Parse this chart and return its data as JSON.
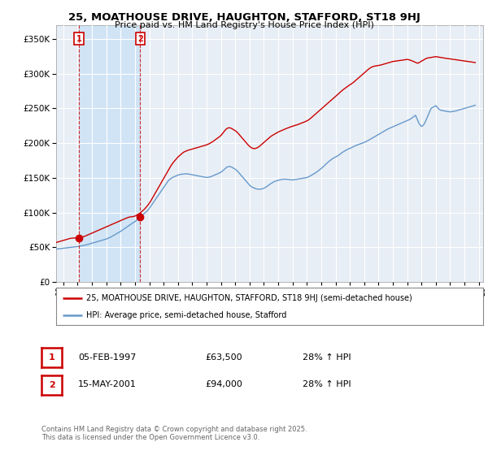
{
  "title": "25, MOATHOUSE DRIVE, HAUGHTON, STAFFORD, ST18 9HJ",
  "subtitle": "Price paid vs. HM Land Registry's House Price Index (HPI)",
  "background_color": "#ffffff",
  "plot_bg_color": "#e8eef5",
  "grid_color": "#ffffff",
  "red_color": "#cc0000",
  "blue_color": "#6699cc",
  "shade_color": "#d0e4f5",
  "legend_label_red": "25, MOATHOUSE DRIVE, HAUGHTON, STAFFORD, ST18 9HJ (semi-detached house)",
  "legend_label_blue": "HPI: Average price, semi-detached house, Stafford",
  "purchase1_date": "05-FEB-1997",
  "purchase1_price": "£63,500",
  "purchase1_hpi": "28% ↑ HPI",
  "purchase2_date": "15-MAY-2001",
  "purchase2_price": "£94,000",
  "purchase2_hpi": "28% ↑ HPI",
  "footer": "Contains HM Land Registry data © Crown copyright and database right 2025.\nThis data is licensed under the Open Government Licence v3.0.",
  "ylim": [
    0,
    370000
  ],
  "yticks": [
    0,
    50000,
    100000,
    150000,
    200000,
    250000,
    300000,
    350000
  ],
  "purchase1_x": 1997.09,
  "purchase1_y": 63500,
  "purchase2_x": 2001.37,
  "purchase2_y": 94000,
  "xmin": 1995.5,
  "xmax": 2025.3,
  "hpi_data_x": [
    1995.5,
    1995.583,
    1995.667,
    1995.75,
    1995.833,
    1995.917,
    1996.0,
    1996.083,
    1996.167,
    1996.25,
    1996.333,
    1996.417,
    1996.5,
    1996.583,
    1996.667,
    1996.75,
    1996.833,
    1996.917,
    1997.0,
    1997.083,
    1997.167,
    1997.25,
    1997.333,
    1997.417,
    1997.5,
    1997.583,
    1997.667,
    1997.75,
    1997.833,
    1997.917,
    1998.0,
    1998.083,
    1998.167,
    1998.25,
    1998.333,
    1998.417,
    1998.5,
    1998.583,
    1998.667,
    1998.75,
    1998.833,
    1998.917,
    1999.0,
    1999.083,
    1999.167,
    1999.25,
    1999.333,
    1999.417,
    1999.5,
    1999.583,
    1999.667,
    1999.75,
    1999.833,
    1999.917,
    2000.0,
    2000.083,
    2000.167,
    2000.25,
    2000.333,
    2000.417,
    2000.5,
    2000.583,
    2000.667,
    2000.75,
    2000.833,
    2000.917,
    2001.0,
    2001.083,
    2001.167,
    2001.25,
    2001.333,
    2001.417,
    2001.5,
    2001.583,
    2001.667,
    2001.75,
    2001.833,
    2001.917,
    2002.0,
    2002.083,
    2002.167,
    2002.25,
    2002.333,
    2002.417,
    2002.5,
    2002.583,
    2002.667,
    2002.75,
    2002.833,
    2002.917,
    2003.0,
    2003.083,
    2003.167,
    2003.25,
    2003.333,
    2003.417,
    2003.5,
    2003.583,
    2003.667,
    2003.75,
    2003.833,
    2003.917,
    2004.0,
    2004.083,
    2004.167,
    2004.25,
    2004.333,
    2004.417,
    2004.5,
    2004.583,
    2004.667,
    2004.75,
    2004.833,
    2004.917,
    2005.0,
    2005.083,
    2005.167,
    2005.25,
    2005.333,
    2005.417,
    2005.5,
    2005.583,
    2005.667,
    2005.75,
    2005.833,
    2005.917,
    2006.0,
    2006.083,
    2006.167,
    2006.25,
    2006.333,
    2006.417,
    2006.5,
    2006.583,
    2006.667,
    2006.75,
    2006.833,
    2006.917,
    2007.0,
    2007.083,
    2007.167,
    2007.25,
    2007.333,
    2007.417,
    2007.5,
    2007.583,
    2007.667,
    2007.75,
    2007.833,
    2007.917,
    2008.0,
    2008.083,
    2008.167,
    2008.25,
    2008.333,
    2008.417,
    2008.5,
    2008.583,
    2008.667,
    2008.75,
    2008.833,
    2008.917,
    2009.0,
    2009.083,
    2009.167,
    2009.25,
    2009.333,
    2009.417,
    2009.5,
    2009.583,
    2009.667,
    2009.75,
    2009.833,
    2009.917,
    2010.0,
    2010.083,
    2010.167,
    2010.25,
    2010.333,
    2010.417,
    2010.5,
    2010.583,
    2010.667,
    2010.75,
    2010.833,
    2010.917,
    2011.0,
    2011.083,
    2011.167,
    2011.25,
    2011.333,
    2011.417,
    2011.5,
    2011.583,
    2011.667,
    2011.75,
    2011.833,
    2011.917,
    2012.0,
    2012.083,
    2012.167,
    2012.25,
    2012.333,
    2012.417,
    2012.5,
    2012.583,
    2012.667,
    2012.75,
    2012.833,
    2012.917,
    2013.0,
    2013.083,
    2013.167,
    2013.25,
    2013.333,
    2013.417,
    2013.5,
    2013.583,
    2013.667,
    2013.75,
    2013.833,
    2013.917,
    2014.0,
    2014.083,
    2014.167,
    2014.25,
    2014.333,
    2014.417,
    2014.5,
    2014.583,
    2014.667,
    2014.75,
    2014.833,
    2014.917,
    2015.0,
    2015.083,
    2015.167,
    2015.25,
    2015.333,
    2015.417,
    2015.5,
    2015.583,
    2015.667,
    2015.75,
    2015.833,
    2015.917,
    2016.0,
    2016.083,
    2016.167,
    2016.25,
    2016.333,
    2016.417,
    2016.5,
    2016.583,
    2016.667,
    2016.75,
    2016.833,
    2016.917,
    2017.0,
    2017.083,
    2017.167,
    2017.25,
    2017.333,
    2017.417,
    2017.5,
    2017.583,
    2017.667,
    2017.75,
    2017.833,
    2017.917,
    2018.0,
    2018.083,
    2018.167,
    2018.25,
    2018.333,
    2018.417,
    2018.5,
    2018.583,
    2018.667,
    2018.75,
    2018.833,
    2018.917,
    2019.0,
    2019.083,
    2019.167,
    2019.25,
    2019.333,
    2019.417,
    2019.5,
    2019.583,
    2019.667,
    2019.75,
    2019.833,
    2019.917,
    2020.0,
    2020.083,
    2020.167,
    2020.25,
    2020.333,
    2020.417,
    2020.5,
    2020.583,
    2020.667,
    2020.75,
    2020.833,
    2020.917,
    2021.0,
    2021.083,
    2021.167,
    2021.25,
    2021.333,
    2021.417,
    2021.5,
    2021.583,
    2021.667,
    2021.75,
    2021.833,
    2021.917,
    2022.0,
    2022.083,
    2022.167,
    2022.25,
    2022.333,
    2022.417,
    2022.5,
    2022.583,
    2022.667,
    2022.75,
    2022.833,
    2022.917,
    2023.0,
    2023.083,
    2023.167,
    2023.25,
    2023.333,
    2023.417,
    2023.5,
    2023.583,
    2023.667,
    2023.75,
    2023.833,
    2023.917,
    2024.0,
    2024.083,
    2024.167,
    2024.25,
    2024.333,
    2024.417,
    2024.5,
    2024.583,
    2024.667,
    2024.75
  ],
  "hpi_data_y": [
    47500,
    47700,
    47900,
    48100,
    48300,
    48500,
    48700,
    49000,
    49200,
    49400,
    49600,
    49800,
    50000,
    50200,
    50400,
    50600,
    50800,
    51000,
    51200,
    51500,
    51800,
    52100,
    52400,
    52700,
    53000,
    53500,
    54000,
    54500,
    55000,
    55500,
    56000,
    56500,
    57000,
    57500,
    58000,
    58500,
    59000,
    59500,
    60000,
    60500,
    61000,
    61500,
    62000,
    62800,
    63500,
    64200,
    65000,
    66000,
    67000,
    68000,
    69000,
    70000,
    71000,
    72000,
    73000,
    74200,
    75400,
    76600,
    77800,
    79000,
    80200,
    81400,
    82600,
    83800,
    85000,
    86000,
    87000,
    88500,
    90000,
    91500,
    93000,
    94500,
    96000,
    97500,
    99000,
    100500,
    102000,
    104000,
    106000,
    108500,
    111000,
    113500,
    116000,
    118500,
    121000,
    123500,
    126000,
    128500,
    131000,
    133500,
    136000,
    138500,
    141000,
    143500,
    146000,
    147500,
    149000,
    150000,
    151000,
    151800,
    152600,
    153200,
    154000,
    154500,
    155000,
    155200,
    155500,
    155700,
    155800,
    156000,
    155800,
    155500,
    155200,
    154800,
    154500,
    154200,
    153800,
    153500,
    153200,
    152800,
    152500,
    152200,
    151800,
    151500,
    151200,
    150900,
    150600,
    150800,
    151000,
    151500,
    152000,
    152800,
    153500,
    154200,
    155000,
    155800,
    156500,
    157200,
    158000,
    159500,
    161000,
    162500,
    164000,
    165500,
    166000,
    166500,
    166200,
    165500,
    164500,
    163500,
    162500,
    161000,
    159500,
    157500,
    155500,
    153500,
    151500,
    149500,
    147500,
    145500,
    143500,
    141500,
    139500,
    138000,
    136800,
    136000,
    135200,
    134500,
    134000,
    133800,
    133600,
    133800,
    134000,
    134500,
    135000,
    136000,
    137000,
    138200,
    139500,
    140800,
    142000,
    143000,
    144000,
    144800,
    145500,
    146000,
    146500,
    147000,
    147500,
    147800,
    148000,
    148200,
    148200,
    148000,
    147800,
    147600,
    147400,
    147200,
    147000,
    147200,
    147500,
    147800,
    148000,
    148300,
    148600,
    149000,
    149300,
    149600,
    149900,
    150200,
    150500,
    151200,
    152000,
    153000,
    154000,
    155000,
    156000,
    157000,
    158200,
    159500,
    160800,
    162000,
    163500,
    165000,
    166500,
    168200,
    169800,
    171500,
    173000,
    174500,
    175800,
    177000,
    178200,
    179200,
    180000,
    181000,
    182000,
    183200,
    184500,
    185800,
    187000,
    188000,
    189000,
    190000,
    191000,
    191800,
    192500,
    193200,
    194000,
    195000,
    195800,
    196500,
    197200,
    197800,
    198500,
    199200,
    199800,
    200500,
    201000,
    201800,
    202500,
    203500,
    204500,
    205500,
    206500,
    207500,
    208500,
    209500,
    210500,
    211500,
    212500,
    213500,
    214500,
    215500,
    216500,
    217500,
    218500,
    219500,
    220500,
    221200,
    222000,
    222800,
    223500,
    224200,
    225000,
    225800,
    226500,
    227200,
    228000,
    228800,
    229500,
    230200,
    231000,
    231800,
    232500,
    233200,
    234000,
    235000,
    236200,
    237500,
    239000,
    240000,
    236000,
    232000,
    228000,
    226000,
    224000,
    225000,
    227000,
    230000,
    234000,
    238000,
    242000,
    246000,
    250000,
    251000,
    252000,
    253000,
    254000,
    252000,
    250000,
    248500,
    247500,
    247000,
    246800,
    246500,
    246000,
    245800,
    245500,
    245200,
    245000,
    245200,
    245500,
    245800,
    246200,
    246500,
    247000,
    247500,
    248000,
    248500,
    249000,
    249500,
    250000,
    250500,
    251000,
    251500,
    252000,
    252500,
    253000,
    253500,
    254000,
    254500
  ],
  "price_data_x": [
    1995.5,
    1995.583,
    1995.667,
    1995.75,
    1995.833,
    1995.917,
    1996.0,
    1996.083,
    1996.167,
    1996.25,
    1996.333,
    1996.417,
    1996.5,
    1996.583,
    1996.667,
    1996.75,
    1996.833,
    1996.917,
    1997.0,
    1997.083,
    1997.09,
    1997.167,
    1997.25,
    1997.333,
    1997.417,
    1997.5,
    1997.583,
    1997.667,
    1997.75,
    1997.833,
    1997.917,
    1998.0,
    1998.083,
    1998.167,
    1998.25,
    1998.333,
    1998.417,
    1998.5,
    1998.583,
    1998.667,
    1998.75,
    1998.833,
    1998.917,
    1999.0,
    1999.083,
    1999.167,
    1999.25,
    1999.333,
    1999.417,
    1999.5,
    1999.583,
    1999.667,
    1999.75,
    1999.833,
    1999.917,
    2000.0,
    2000.083,
    2000.167,
    2000.25,
    2000.333,
    2000.417,
    2000.5,
    2000.583,
    2000.667,
    2000.75,
    2000.833,
    2000.917,
    2001.0,
    2001.083,
    2001.167,
    2001.25,
    2001.333,
    2001.37,
    2001.417,
    2001.5,
    2001.583,
    2001.667,
    2001.75,
    2001.833,
    2001.917,
    2002.0,
    2002.083,
    2002.167,
    2002.25,
    2002.333,
    2002.417,
    2002.5,
    2002.583,
    2002.667,
    2002.75,
    2002.833,
    2002.917,
    2003.0,
    2003.083,
    2003.167,
    2003.25,
    2003.333,
    2003.417,
    2003.5,
    2003.583,
    2003.667,
    2003.75,
    2003.833,
    2003.917,
    2004.0,
    2004.083,
    2004.167,
    2004.25,
    2004.333,
    2004.417,
    2004.5,
    2004.583,
    2004.667,
    2004.75,
    2004.833,
    2004.917,
    2005.0,
    2005.083,
    2005.167,
    2005.25,
    2005.333,
    2005.417,
    2005.5,
    2005.583,
    2005.667,
    2005.75,
    2005.833,
    2005.917,
    2006.0,
    2006.083,
    2006.167,
    2006.25,
    2006.333,
    2006.417,
    2006.5,
    2006.583,
    2006.667,
    2006.75,
    2006.833,
    2006.917,
    2007.0,
    2007.083,
    2007.167,
    2007.25,
    2007.333,
    2007.417,
    2007.5,
    2007.583,
    2007.667,
    2007.75,
    2007.833,
    2007.917,
    2008.0,
    2008.083,
    2008.167,
    2008.25,
    2008.333,
    2008.417,
    2008.5,
    2008.583,
    2008.667,
    2008.75,
    2008.833,
    2008.917,
    2009.0,
    2009.083,
    2009.167,
    2009.25,
    2009.333,
    2009.417,
    2009.5,
    2009.583,
    2009.667,
    2009.75,
    2009.833,
    2009.917,
    2010.0,
    2010.083,
    2010.167,
    2010.25,
    2010.333,
    2010.417,
    2010.5,
    2010.583,
    2010.667,
    2010.75,
    2010.833,
    2010.917,
    2011.0,
    2011.083,
    2011.167,
    2011.25,
    2011.333,
    2011.417,
    2011.5,
    2011.583,
    2011.667,
    2011.75,
    2011.833,
    2011.917,
    2012.0,
    2012.083,
    2012.167,
    2012.25,
    2012.333,
    2012.417,
    2012.5,
    2012.583,
    2012.667,
    2012.75,
    2012.833,
    2012.917,
    2013.0,
    2013.083,
    2013.167,
    2013.25,
    2013.333,
    2013.417,
    2013.5,
    2013.583,
    2013.667,
    2013.75,
    2013.833,
    2013.917,
    2014.0,
    2014.083,
    2014.167,
    2014.25,
    2014.333,
    2014.417,
    2014.5,
    2014.583,
    2014.667,
    2014.75,
    2014.833,
    2014.917,
    2015.0,
    2015.083,
    2015.167,
    2015.25,
    2015.333,
    2015.417,
    2015.5,
    2015.583,
    2015.667,
    2015.75,
    2015.833,
    2015.917,
    2016.0,
    2016.083,
    2016.167,
    2016.25,
    2016.333,
    2016.417,
    2016.5,
    2016.583,
    2016.667,
    2016.75,
    2016.833,
    2016.917,
    2017.0,
    2017.083,
    2017.167,
    2017.25,
    2017.333,
    2017.417,
    2017.5,
    2017.583,
    2017.667,
    2017.75,
    2017.833,
    2017.917,
    2018.0,
    2018.083,
    2018.167,
    2018.25,
    2018.333,
    2018.417,
    2018.5,
    2018.583,
    2018.667,
    2018.75,
    2018.833,
    2018.917,
    2019.0,
    2019.083,
    2019.167,
    2019.25,
    2019.333,
    2019.417,
    2019.5,
    2019.583,
    2019.667,
    2019.75,
    2019.833,
    2019.917,
    2020.0,
    2020.083,
    2020.167,
    2020.25,
    2020.333,
    2020.417,
    2020.5,
    2020.583,
    2020.667,
    2020.75,
    2020.833,
    2020.917,
    2021.0,
    2021.083,
    2021.167,
    2021.25,
    2021.333,
    2021.417,
    2021.5,
    2021.583,
    2021.667,
    2021.75,
    2021.833,
    2021.917,
    2022.0,
    2022.083,
    2022.167,
    2022.25,
    2022.333,
    2022.417,
    2022.5,
    2022.583,
    2022.667,
    2022.75,
    2022.833,
    2022.917,
    2023.0,
    2023.083,
    2023.167,
    2023.25,
    2023.333,
    2023.417,
    2023.5,
    2023.583,
    2023.667,
    2023.75,
    2023.833,
    2023.917,
    2024.0,
    2024.083,
    2024.167,
    2024.25,
    2024.333,
    2024.417,
    2024.5,
    2024.583,
    2024.667,
    2024.75
  ],
  "price_data_y": [
    57000,
    57500,
    58000,
    58500,
    59000,
    59500,
    60000,
    60500,
    61000,
    61500,
    62000,
    62500,
    63000,
    63200,
    63400,
    63500,
    63600,
    63700,
    63800,
    63900,
    63500,
    64000,
    64500,
    65000,
    65500,
    66000,
    66800,
    67500,
    68200,
    69000,
    69800,
    70500,
    71200,
    72000,
    72800,
    73500,
    74200,
    75000,
    75800,
    76500,
    77200,
    78000,
    78800,
    79500,
    80200,
    81000,
    81800,
    82500,
    83200,
    84000,
    84800,
    85500,
    86200,
    87000,
    87800,
    88500,
    89200,
    90000,
    90800,
    91500,
    92200,
    93000,
    93500,
    93800,
    94000,
    94200,
    94500,
    95000,
    96000,
    97000,
    98000,
    99000,
    94000,
    100500,
    102000,
    103500,
    105000,
    107000,
    109000,
    111000,
    113500,
    116000,
    119000,
    122000,
    125000,
    128000,
    131000,
    134000,
    137000,
    140000,
    143000,
    146000,
    149000,
    152000,
    155000,
    158000,
    161000,
    164000,
    167000,
    169500,
    172000,
    174000,
    176000,
    178000,
    180000,
    181500,
    183000,
    184500,
    186000,
    187200,
    188000,
    188800,
    189500,
    190000,
    190500,
    191000,
    191500,
    192000,
    192500,
    193000,
    193500,
    194000,
    194500,
    195000,
    195500,
    196000,
    196500,
    197000,
    197500,
    198200,
    199000,
    200000,
    201000,
    202000,
    203200,
    204500,
    205800,
    207000,
    208200,
    209500,
    211000,
    213000,
    215200,
    217500,
    219500,
    221000,
    221800,
    222200,
    221800,
    221000,
    220000,
    219000,
    218000,
    216500,
    215000,
    213000,
    211000,
    209000,
    207000,
    205000,
    203000,
    201000,
    199000,
    197000,
    195500,
    194000,
    193000,
    192500,
    192000,
    192500,
    193000,
    194000,
    195000,
    196500,
    198000,
    199500,
    201000,
    202500,
    204000,
    205500,
    207000,
    208500,
    210000,
    211000,
    212000,
    213000,
    214000,
    215000,
    216000,
    216800,
    217500,
    218200,
    219000,
    219800,
    220500,
    221200,
    221800,
    222500,
    223200,
    223800,
    224500,
    225000,
    225500,
    226000,
    226500,
    227200,
    227800,
    228500,
    229200,
    229800,
    230500,
    231200,
    232000,
    233000,
    234200,
    235500,
    237000,
    238500,
    240000,
    241500,
    243000,
    244500,
    246000,
    247500,
    249000,
    250500,
    252000,
    253500,
    255000,
    256500,
    258000,
    259500,
    261000,
    262500,
    264000,
    265500,
    267000,
    268500,
    270200,
    271800,
    273500,
    275000,
    276500,
    277800,
    279000,
    280200,
    281500,
    282800,
    284000,
    285000,
    286200,
    287500,
    289000,
    290500,
    292000,
    293500,
    295000,
    296500,
    298000,
    299500,
    301000,
    302500,
    304000,
    305500,
    307000,
    308200,
    309200,
    310000,
    310500,
    311000,
    311200,
    311500,
    311800,
    312000,
    312500,
    313000,
    313500,
    314000,
    314500,
    315000,
    315500,
    316000,
    316500,
    317000,
    317500,
    317800,
    318000,
    318200,
    318500,
    318800,
    319000,
    319200,
    319500,
    319800,
    320000,
    320200,
    320500,
    320200,
    319800,
    319200,
    318500,
    317800,
    317000,
    316200,
    315500,
    315000,
    316000,
    317000,
    318000,
    319000,
    320000,
    321000,
    322000,
    322500,
    322800,
    323200,
    323500,
    323800,
    324000,
    324200,
    324500,
    324200,
    323800,
    323500,
    323200,
    323000,
    322800,
    322500,
    322200,
    322000,
    321800,
    321500,
    321200,
    321000,
    320800,
    320500,
    320200,
    320000,
    319800,
    319500,
    319200,
    319000,
    318800,
    318500,
    318200,
    318000,
    317800,
    317500,
    317200,
    317000,
    316800,
    316500,
    316200,
    316000
  ]
}
